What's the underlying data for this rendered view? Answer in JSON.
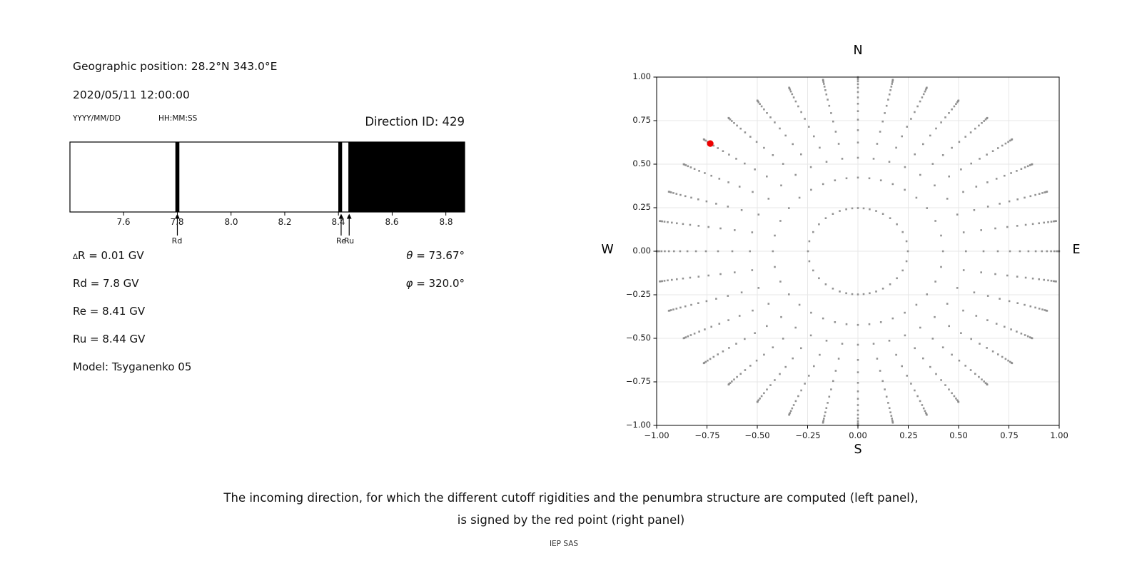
{
  "header": {
    "geo_label": "Geographic position: 28.2°N 343.0°E",
    "datetime": "2020/05/11 12:00:00",
    "date_format": "YYYY/MM/DD",
    "time_format": "HH:MM:SS",
    "direction_id": "Direction ID: 429"
  },
  "left_info": {
    "rows": [
      {
        "small": "∆",
        "text": "R = 0.01 GV"
      },
      {
        "small": "",
        "text": "Rd = 7.8 GV"
      },
      {
        "small": "",
        "text": "Re = 8.41 GV"
      },
      {
        "small": "",
        "text": "Ru = 8.44 GV"
      },
      {
        "small": "",
        "text": "Model: Tsyganenko 05"
      }
    ],
    "angles": [
      {
        "sym": "θ",
        "text": " = 73.67°"
      },
      {
        "sym": "φ",
        "text": " = 320.0°"
      }
    ]
  },
  "caption": {
    "line1": "The incoming direction, for which the different cutoff rigidities and the penumbra structure are computed (left panel),",
    "line2": "is signed by the red point (right panel)",
    "credit": "IEP SAS"
  },
  "chart_data": [
    {
      "id": "penumbra",
      "type": "bar",
      "xlim": [
        7.4,
        8.87
      ],
      "xticks": [
        7.6,
        7.8,
        8.0,
        8.2,
        8.4,
        8.6,
        8.8
      ],
      "xtick_labels": [
        "7.6",
        "7.8",
        "8.0",
        "8.2",
        "8.4",
        "8.6",
        "8.8"
      ],
      "bands_gv": [
        [
          7.7925,
          7.8075
        ],
        [
          8.3995,
          8.4135
        ],
        [
          8.437,
          8.87
        ]
      ],
      "markers": [
        {
          "label": "Rd",
          "x": 7.8
        },
        {
          "label": "Re",
          "x": 8.41
        },
        {
          "label": "Ru",
          "x": 8.44
        }
      ],
      "bar_color": "#000000",
      "cutoffs": {
        "deltaR_gv": 0.01,
        "Rd_gv": 7.8,
        "Re_gv": 8.41,
        "Ru_gv": 8.44,
        "model": "Tsyganenko 05"
      }
    },
    {
      "id": "directions",
      "type": "scatter",
      "xlim": [
        -1,
        1
      ],
      "ylim": [
        -1,
        1
      ],
      "ticks": [
        -1,
        -0.75,
        -0.5,
        -0.25,
        0,
        0.25,
        0.5,
        0.75,
        1
      ],
      "xtick_labels": [
        "−1.00",
        "−0.75",
        "−0.50",
        "−0.25",
        "0.00",
        "0.25",
        "0.50",
        "0.75",
        "1.00"
      ],
      "ytick_labels": [
        "1.00",
        "0.75",
        "0.50",
        "0.25",
        "0.00",
        "−0.25",
        "−0.50",
        "−0.75",
        "−1.00"
      ],
      "grid": true,
      "grid_color": "#e7e7e7",
      "compass": {
        "n": "N",
        "s": "S",
        "e": "E",
        "w": "W"
      },
      "rays": {
        "count": 36,
        "tip_azimuth_step_deg": 10,
        "ring_radii": [
          0.2481,
          0.4228,
          0.5367,
          0.6242,
          0.6952,
          0.7552,
          0.8047,
          0.8473,
          0.8833,
          0.9138,
          0.9391,
          0.9596,
          0.9758,
          0.9877,
          0.9956,
          0.9995
        ],
        "curvature_amp_deg": 10,
        "curvature_power": 1.5
      },
      "dot_color": "#8a8a8a",
      "red_point": {
        "ray_azimuth_deg": 310,
        "r": 0.9596,
        "theta_deg": 73.67,
        "phi_deg": 320.0,
        "color": "#ee0000"
      }
    }
  ]
}
